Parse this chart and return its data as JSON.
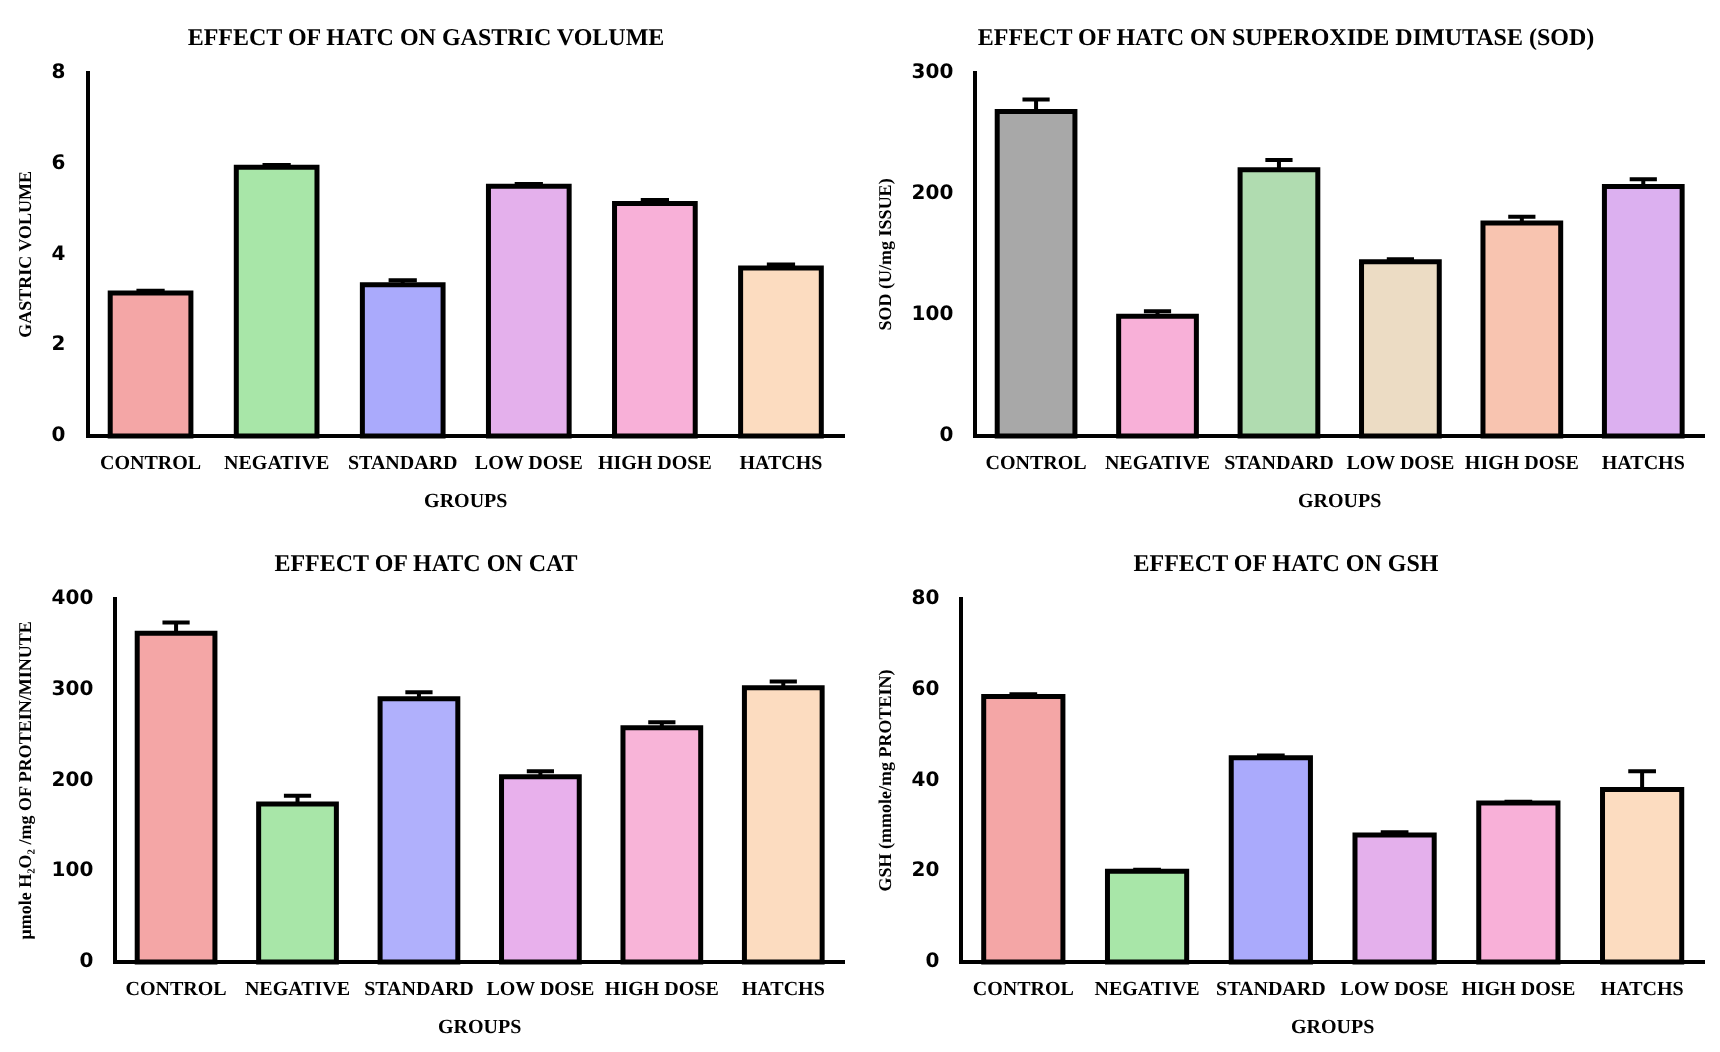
{
  "chart_data": [
    {
      "type": "bar",
      "title": "EFFECT OF HATC ON GASTRIC VOLUME",
      "xlabel": "GROUPS",
      "ylabel": "GASTRIC VOLUME",
      "categories": [
        "CONTROL",
        "NEGATIVE",
        "STANDARD",
        "LOW DOSE",
        "HIGH DOSE",
        "HATCHS"
      ],
      "values": [
        3.15,
        5.92,
        3.33,
        5.5,
        5.12,
        3.7
      ],
      "errors": [
        0.05,
        0.05,
        0.1,
        0.05,
        0.08,
        0.08
      ],
      "colors": [
        "#f4a6a6",
        "#a8e6a8",
        "#aaaafc",
        "#e4b0ec",
        "#f8b0d8",
        "#fcdcc0"
      ],
      "ylim": [
        0,
        8
      ],
      "yticks": [
        0,
        2,
        4,
        6,
        8
      ],
      "grid": false,
      "legend": false
    },
    {
      "type": "bar",
      "title": "EFFECT OF HATC ON SUPEROXIDE DIMUTASE (SOD)",
      "xlabel": "GROUPS",
      "ylabel": "SOD (U/mg ISSUE)",
      "categories": [
        "CONTROL",
        "NEGATIVE",
        "STANDARD",
        "LOW DOSE",
        "HIGH DOSE",
        "HATCHS"
      ],
      "values": [
        268,
        99,
        220,
        144,
        176,
        206
      ],
      "errors": [
        10,
        4,
        8,
        2,
        5,
        6
      ],
      "colors": [
        "#a8a8a8",
        "#f8b0d8",
        "#b0dcb0",
        "#ecdcc4",
        "#f8c4b0",
        "#dcb0f0"
      ],
      "ylim": [
        0,
        300
      ],
      "yticks": [
        0,
        100,
        200,
        300
      ],
      "grid": false,
      "legend": false
    },
    {
      "type": "bar",
      "title": "EFFECT OF HATC ON CAT",
      "xlabel": "GROUPS",
      "ylabel": "μmole H₂O₂ /mg OF PROTEIN/MINUTE",
      "categories": [
        "CONTROL",
        "NEGATIVE",
        "STANDARD",
        "LOW DOSE",
        "HIGH DOSE",
        "HATCHS"
      ],
      "values": [
        362,
        174,
        290,
        204,
        258,
        302
      ],
      "errors": [
        12,
        9,
        7,
        6,
        6,
        7
      ],
      "colors": [
        "#f4a6a6",
        "#a8e6a8",
        "#b0b0fc",
        "#e8b0ec",
        "#f8b4d8",
        "#fcdcc0"
      ],
      "ylim": [
        0,
        400
      ],
      "yticks": [
        0,
        100,
        200,
        300,
        400
      ],
      "grid": false,
      "legend": false
    },
    {
      "type": "bar",
      "title": "EFFECT OF HATC ON GSH",
      "xlabel": "GROUPS",
      "ylabel": "GSH (mmole/mg PROTEIN)",
      "categories": [
        "CONTROL",
        "NEGATIVE",
        "STANDARD",
        "LOW DOSE",
        "HIGH DOSE",
        "HATCHS"
      ],
      "values": [
        58.5,
        20,
        45,
        28,
        35,
        38
      ],
      "errors": [
        0.5,
        0.3,
        0.5,
        0.6,
        0.3,
        4
      ],
      "colors": [
        "#f4a6a6",
        "#a8e6a8",
        "#aaaafc",
        "#e4b0ec",
        "#f8b0d8",
        "#fcdcc0"
      ],
      "ylim": [
        0,
        80
      ],
      "yticks": [
        0,
        20,
        40,
        60,
        80
      ],
      "grid": false,
      "legend": false
    }
  ]
}
